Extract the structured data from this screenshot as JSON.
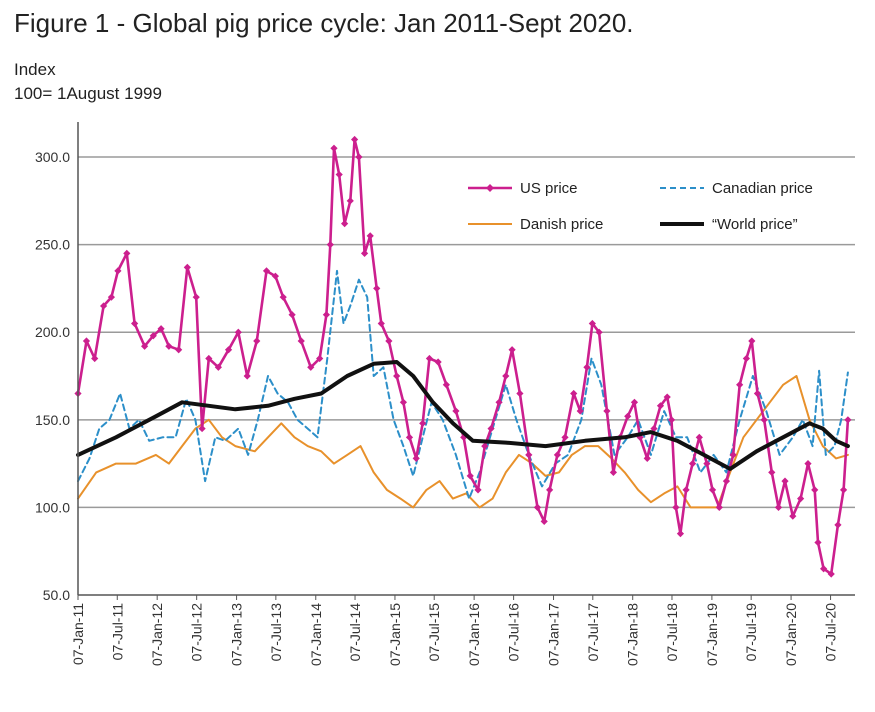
{
  "title": "Figure 1 - Global pig price cycle: Jan 2011-Sept 2020.",
  "unit_line1": "Index",
  "unit_line2": "100= 1August 1999",
  "colors": {
    "us": "#cc1f8e",
    "canadian": "#2c8fc9",
    "danish": "#e8912b",
    "world": "#111111",
    "grid": "#9a9a9a"
  },
  "chart_data": {
    "type": "line",
    "title": "Figure 1 - Global pig price cycle: Jan 2011-Sept 2020.",
    "ylabel": "Index 100= 1August 1999",
    "xlabel": "",
    "ylim": [
      50,
      320
    ],
    "yticks": [
      50,
      100,
      150,
      200,
      250,
      300
    ],
    "ytick_labels": [
      "50.0",
      "100.0",
      "150.0",
      "200.0",
      "250.0",
      "300.0"
    ],
    "xlim": [
      "2011-01-07",
      "2020-09-30"
    ],
    "x_tick_labels": [
      "07-Jan-11",
      "07-Jul-11",
      "07-Jan-12",
      "07-Jul-12",
      "07-Jan-13",
      "07-Jul-13",
      "07-Jan-14",
      "07-Jul-14",
      "07-Jan-15",
      "07-Jul-15",
      "07-Jan-16",
      "07-Jul-16",
      "07-Jan-17",
      "07-Jul-17",
      "07-Jan-18",
      "07-Jul-18",
      "07-Jan-19",
      "07-Jul-19",
      "07-Jan-20",
      "07-Jul-20"
    ],
    "grid": "horizontal",
    "legend_position": "top-right",
    "series": [
      {
        "name": "US price",
        "style": "line with diamond markers",
        "points": [
          [
            "2011-01-07",
            165
          ],
          [
            "2011-02-15",
            195
          ],
          [
            "2011-03-25",
            185
          ],
          [
            "2011-05-05",
            215
          ],
          [
            "2011-06-10",
            220
          ],
          [
            "2011-07-10",
            235
          ],
          [
            "2011-08-20",
            245
          ],
          [
            "2011-09-25",
            205
          ],
          [
            "2011-11-10",
            192
          ],
          [
            "2011-12-20",
            198
          ],
          [
            "2012-01-25",
            202
          ],
          [
            "2012-03-01",
            192
          ],
          [
            "2012-04-15",
            190
          ],
          [
            "2012-05-25",
            237
          ],
          [
            "2012-07-05",
            220
          ],
          [
            "2012-08-01",
            145
          ],
          [
            "2012-09-01",
            185
          ],
          [
            "2012-10-15",
            180
          ],
          [
            "2012-12-01",
            190
          ],
          [
            "2013-01-15",
            200
          ],
          [
            "2013-02-25",
            175
          ],
          [
            "2013-04-10",
            195
          ],
          [
            "2013-05-25",
            235
          ],
          [
            "2013-07-05",
            232
          ],
          [
            "2013-08-10",
            220
          ],
          [
            "2013-09-20",
            210
          ],
          [
            "2013-11-01",
            195
          ],
          [
            "2013-12-15",
            180
          ],
          [
            "2014-01-25",
            185
          ],
          [
            "2014-02-25",
            210
          ],
          [
            "2014-03-15",
            250
          ],
          [
            "2014-04-01",
            305
          ],
          [
            "2014-04-25",
            290
          ],
          [
            "2014-05-20",
            262
          ],
          [
            "2014-06-15",
            275
          ],
          [
            "2014-07-05",
            310
          ],
          [
            "2014-07-25",
            300
          ],
          [
            "2014-08-20",
            245
          ],
          [
            "2014-09-15",
            255
          ],
          [
            "2014-10-15",
            225
          ],
          [
            "2014-11-05",
            205
          ],
          [
            "2014-12-10",
            195
          ],
          [
            "2015-01-15",
            175
          ],
          [
            "2015-02-15",
            160
          ],
          [
            "2015-03-15",
            140
          ],
          [
            "2015-04-15",
            128
          ],
          [
            "2015-05-15",
            148
          ],
          [
            "2015-06-15",
            185
          ],
          [
            "2015-07-25",
            183
          ],
          [
            "2015-09-01",
            170
          ],
          [
            "2015-10-15",
            155
          ],
          [
            "2015-11-20",
            140
          ],
          [
            "2015-12-20",
            118
          ],
          [
            "2016-01-25",
            110
          ],
          [
            "2016-02-25",
            135
          ],
          [
            "2016-03-25",
            145
          ],
          [
            "2016-05-01",
            160
          ],
          [
            "2016-06-01",
            175
          ],
          [
            "2016-06-30",
            190
          ],
          [
            "2016-08-05",
            165
          ],
          [
            "2016-09-15",
            130
          ],
          [
            "2016-10-25",
            100
          ],
          [
            "2016-11-25",
            92
          ],
          [
            "2016-12-20",
            110
          ],
          [
            "2017-01-25",
            130
          ],
          [
            "2017-03-01",
            140
          ],
          [
            "2017-04-10",
            165
          ],
          [
            "2017-05-10",
            155
          ],
          [
            "2017-06-10",
            180
          ],
          [
            "2017-07-05",
            205
          ],
          [
            "2017-08-05",
            200
          ],
          [
            "2017-09-10",
            155
          ],
          [
            "2017-10-10",
            120
          ],
          [
            "2017-11-10",
            140
          ],
          [
            "2017-12-15",
            152
          ],
          [
            "2018-01-15",
            160
          ],
          [
            "2018-02-10",
            140
          ],
          [
            "2018-03-15",
            128
          ],
          [
            "2018-04-15",
            145
          ],
          [
            "2018-05-15",
            158
          ],
          [
            "2018-06-15",
            163
          ],
          [
            "2018-07-05",
            150
          ],
          [
            "2018-07-25",
            100
          ],
          [
            "2018-08-15",
            85
          ],
          [
            "2018-09-10",
            110
          ],
          [
            "2018-10-10",
            125
          ],
          [
            "2018-11-10",
            140
          ],
          [
            "2018-12-15",
            125
          ],
          [
            "2019-01-10",
            110
          ],
          [
            "2019-02-10",
            100
          ],
          [
            "2019-03-15",
            115
          ],
          [
            "2019-04-15",
            130
          ],
          [
            "2019-05-15",
            170
          ],
          [
            "2019-06-15",
            185
          ],
          [
            "2019-07-10",
            195
          ],
          [
            "2019-08-05",
            165
          ],
          [
            "2019-09-05",
            150
          ],
          [
            "2019-10-10",
            120
          ],
          [
            "2019-11-10",
            100
          ],
          [
            "2019-12-10",
            115
          ],
          [
            "2020-01-15",
            95
          ],
          [
            "2020-02-20",
            105
          ],
          [
            "2020-03-25",
            125
          ],
          [
            "2020-04-25",
            110
          ],
          [
            "2020-05-10",
            80
          ],
          [
            "2020-06-05",
            65
          ],
          [
            "2020-07-10",
            62
          ],
          [
            "2020-08-10",
            90
          ],
          [
            "2020-09-05",
            110
          ],
          [
            "2020-09-25",
            150
          ]
        ]
      },
      {
        "name": "Canadian price",
        "style": "dashed line",
        "points": [
          [
            "2011-01-07",
            115
          ],
          [
            "2011-03-01",
            128
          ],
          [
            "2011-04-15",
            145
          ],
          [
            "2011-06-01",
            150
          ],
          [
            "2011-07-20",
            165
          ],
          [
            "2011-09-01",
            145
          ],
          [
            "2011-10-15",
            150
          ],
          [
            "2011-12-01",
            138
          ],
          [
            "2012-02-01",
            140
          ],
          [
            "2012-04-01",
            140
          ],
          [
            "2012-05-20",
            162
          ],
          [
            "2012-07-01",
            150
          ],
          [
            "2012-08-15",
            115
          ],
          [
            "2012-10-01",
            140
          ],
          [
            "2012-11-15",
            138
          ],
          [
            "2013-01-15",
            145
          ],
          [
            "2013-03-01",
            130
          ],
          [
            "2013-04-15",
            150
          ],
          [
            "2013-06-01",
            175
          ],
          [
            "2013-07-15",
            165
          ],
          [
            "2013-09-01",
            160
          ],
          [
            "2013-10-15",
            150
          ],
          [
            "2013-12-01",
            145
          ],
          [
            "2014-01-15",
            140
          ],
          [
            "2014-03-01",
            185
          ],
          [
            "2014-04-15",
            235
          ],
          [
            "2014-05-15",
            205
          ],
          [
            "2014-06-15",
            215
          ],
          [
            "2014-07-25",
            230
          ],
          [
            "2014-09-01",
            220
          ],
          [
            "2014-10-01",
            175
          ],
          [
            "2014-11-15",
            180
          ],
          [
            "2015-01-01",
            150
          ],
          [
            "2015-02-15",
            135
          ],
          [
            "2015-04-01",
            118
          ],
          [
            "2015-05-15",
            140
          ],
          [
            "2015-06-25",
            160
          ],
          [
            "2015-08-15",
            150
          ],
          [
            "2015-10-15",
            130
          ],
          [
            "2015-12-15",
            105
          ],
          [
            "2016-02-01",
            120
          ],
          [
            "2016-04-01",
            145
          ],
          [
            "2016-06-01",
            170
          ],
          [
            "2016-07-20",
            150
          ],
          [
            "2016-09-15",
            130
          ],
          [
            "2016-11-15",
            112
          ],
          [
            "2017-01-15",
            125
          ],
          [
            "2017-03-15",
            130
          ],
          [
            "2017-05-15",
            150
          ],
          [
            "2017-07-01",
            185
          ],
          [
            "2017-08-15",
            170
          ],
          [
            "2017-10-15",
            130
          ],
          [
            "2017-12-15",
            140
          ],
          [
            "2018-02-01",
            150
          ],
          [
            "2018-04-01",
            130
          ],
          [
            "2018-06-01",
            155
          ],
          [
            "2018-07-25",
            140
          ],
          [
            "2018-09-15",
            140
          ],
          [
            "2018-11-15",
            120
          ],
          [
            "2019-01-15",
            130
          ],
          [
            "2019-03-15",
            120
          ],
          [
            "2019-05-15",
            150
          ],
          [
            "2019-07-15",
            175
          ],
          [
            "2019-09-15",
            155
          ],
          [
            "2019-11-15",
            130
          ],
          [
            "2020-01-15",
            140
          ],
          [
            "2020-03-01",
            150
          ],
          [
            "2020-04-15",
            135
          ],
          [
            "2020-05-15",
            178
          ],
          [
            "2020-06-15",
            130
          ],
          [
            "2020-07-25",
            135
          ],
          [
            "2020-08-25",
            150
          ],
          [
            "2020-09-25",
            177
          ]
        ]
      },
      {
        "name": "Danish price",
        "style": "solid thin line",
        "points": [
          [
            "2011-01-07",
            105
          ],
          [
            "2011-04-01",
            120
          ],
          [
            "2011-07-01",
            125
          ],
          [
            "2011-10-01",
            125
          ],
          [
            "2012-01-01",
            130
          ],
          [
            "2012-03-01",
            125
          ],
          [
            "2012-05-01",
            135
          ],
          [
            "2012-07-01",
            145
          ],
          [
            "2012-09-01",
            150
          ],
          [
            "2012-11-01",
            140
          ],
          [
            "2013-01-01",
            135
          ],
          [
            "2013-04-01",
            132
          ],
          [
            "2013-06-01",
            140
          ],
          [
            "2013-08-01",
            148
          ],
          [
            "2013-10-01",
            140
          ],
          [
            "2013-12-01",
            135
          ],
          [
            "2014-02-01",
            132
          ],
          [
            "2014-04-01",
            125
          ],
          [
            "2014-06-01",
            130
          ],
          [
            "2014-08-01",
            135
          ],
          [
            "2014-10-01",
            120
          ],
          [
            "2014-12-01",
            110
          ],
          [
            "2015-02-01",
            105
          ],
          [
            "2015-04-01",
            100
          ],
          [
            "2015-06-01",
            110
          ],
          [
            "2015-08-01",
            115
          ],
          [
            "2015-10-01",
            105
          ],
          [
            "2015-12-01",
            108
          ],
          [
            "2016-02-01",
            100
          ],
          [
            "2016-04-01",
            105
          ],
          [
            "2016-06-01",
            120
          ],
          [
            "2016-08-01",
            130
          ],
          [
            "2016-10-01",
            125
          ],
          [
            "2016-12-01",
            118
          ],
          [
            "2017-02-01",
            120
          ],
          [
            "2017-04-01",
            130
          ],
          [
            "2017-06-01",
            135
          ],
          [
            "2017-08-01",
            135
          ],
          [
            "2017-10-01",
            128
          ],
          [
            "2017-12-01",
            120
          ],
          [
            "2018-02-01",
            110
          ],
          [
            "2018-04-01",
            103
          ],
          [
            "2018-06-01",
            108
          ],
          [
            "2018-08-01",
            112
          ],
          [
            "2018-10-01",
            100
          ],
          [
            "2018-12-01",
            100
          ],
          [
            "2019-02-01",
            100
          ],
          [
            "2019-04-01",
            120
          ],
          [
            "2019-06-01",
            140
          ],
          [
            "2019-08-01",
            150
          ],
          [
            "2019-10-01",
            160
          ],
          [
            "2019-12-01",
            170
          ],
          [
            "2020-02-01",
            175
          ],
          [
            "2020-04-01",
            150
          ],
          [
            "2020-06-01",
            135
          ],
          [
            "2020-08-01",
            128
          ],
          [
            "2020-09-25",
            130
          ]
        ]
      },
      {
        "name": "“World price”",
        "style": "thick solid line",
        "points": [
          [
            "2011-01-07",
            130
          ],
          [
            "2011-07-01",
            140
          ],
          [
            "2012-01-01",
            152
          ],
          [
            "2012-05-01",
            160
          ],
          [
            "2012-09-01",
            158
          ],
          [
            "2013-01-01",
            156
          ],
          [
            "2013-06-01",
            158
          ],
          [
            "2013-10-01",
            162
          ],
          [
            "2014-02-01",
            165
          ],
          [
            "2014-06-01",
            175
          ],
          [
            "2014-10-01",
            182
          ],
          [
            "2015-01-15",
            183
          ],
          [
            "2015-04-01",
            175
          ],
          [
            "2015-07-01",
            160
          ],
          [
            "2015-10-01",
            148
          ],
          [
            "2016-01-01",
            138
          ],
          [
            "2016-06-01",
            137
          ],
          [
            "2016-12-01",
            135
          ],
          [
            "2017-06-01",
            138
          ],
          [
            "2017-12-01",
            140
          ],
          [
            "2018-04-01",
            143
          ],
          [
            "2018-08-01",
            138
          ],
          [
            "2018-12-01",
            130
          ],
          [
            "2019-04-01",
            122
          ],
          [
            "2019-08-01",
            132
          ],
          [
            "2019-12-01",
            140
          ],
          [
            "2020-04-01",
            148
          ],
          [
            "2020-06-01",
            145
          ],
          [
            "2020-08-01",
            138
          ],
          [
            "2020-09-25",
            135
          ]
        ]
      }
    ]
  }
}
